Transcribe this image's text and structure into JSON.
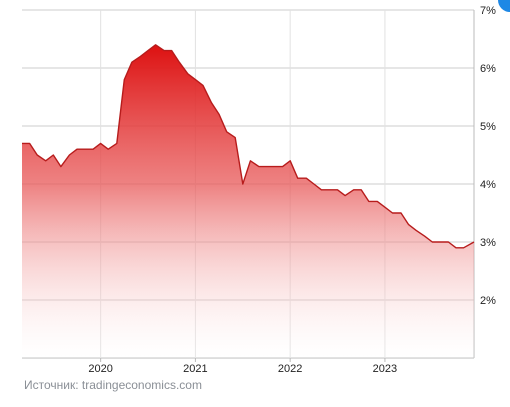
{
  "chart_data": {
    "type": "area",
    "title": "",
    "xlabel": "",
    "ylabel": "",
    "ylim": [
      1,
      7
    ],
    "y_ticks": [
      "2%",
      "3%",
      "4%",
      "5%",
      "6%",
      "7%"
    ],
    "y_tick_values": [
      2,
      3,
      4,
      5,
      6,
      7
    ],
    "y_axis_position": "right",
    "x_ticks": [
      "2020",
      "2021",
      "2022",
      "2023"
    ],
    "x_tick_values": [
      2020.0,
      2021.0,
      2022.0,
      2023.0
    ],
    "xlim": [
      2019.17,
      2023.94
    ],
    "grid": true,
    "series": [
      {
        "values_unit": "%",
        "x": [
          2019.17,
          2019.25,
          2019.33,
          2019.42,
          2019.5,
          2019.58,
          2019.67,
          2019.75,
          2019.83,
          2019.92,
          2020.0,
          2020.08,
          2020.17,
          2020.25,
          2020.33,
          2020.42,
          2020.5,
          2020.58,
          2020.67,
          2020.75,
          2020.83,
          2020.92,
          2021.0,
          2021.08,
          2021.17,
          2021.25,
          2021.33,
          2021.42,
          2021.5,
          2021.58,
          2021.67,
          2021.75,
          2021.83,
          2021.92,
          2022.0,
          2022.08,
          2022.17,
          2022.25,
          2022.33,
          2022.42,
          2022.5,
          2022.58,
          2022.67,
          2022.75,
          2022.83,
          2022.92,
          2023.0,
          2023.08,
          2023.17,
          2023.25,
          2023.33,
          2023.42,
          2023.5,
          2023.58,
          2023.67,
          2023.75,
          2023.83,
          2023.94
        ],
        "values": [
          4.7,
          4.7,
          4.5,
          4.4,
          4.5,
          4.3,
          4.5,
          4.6,
          4.6,
          4.6,
          4.7,
          4.6,
          4.7,
          5.8,
          6.1,
          6.2,
          6.3,
          6.4,
          6.3,
          6.3,
          6.1,
          5.9,
          5.8,
          5.7,
          5.4,
          5.2,
          4.9,
          4.8,
          4.0,
          4.4,
          4.3,
          4.3,
          4.3,
          4.3,
          4.4,
          4.1,
          4.1,
          4.0,
          3.9,
          3.9,
          3.9,
          3.8,
          3.9,
          3.9,
          3.7,
          3.7,
          3.6,
          3.5,
          3.5,
          3.3,
          3.2,
          3.1,
          3.0,
          3.0,
          3.0,
          2.9,
          2.9,
          3.0
        ]
      }
    ],
    "colors": {
      "line": "#b71c1c",
      "fill_top": "#dd1111",
      "fill_bottom": "#ffffff",
      "grid": "#cccccc"
    }
  },
  "source_text": "Источник: tradingeconomics.com"
}
